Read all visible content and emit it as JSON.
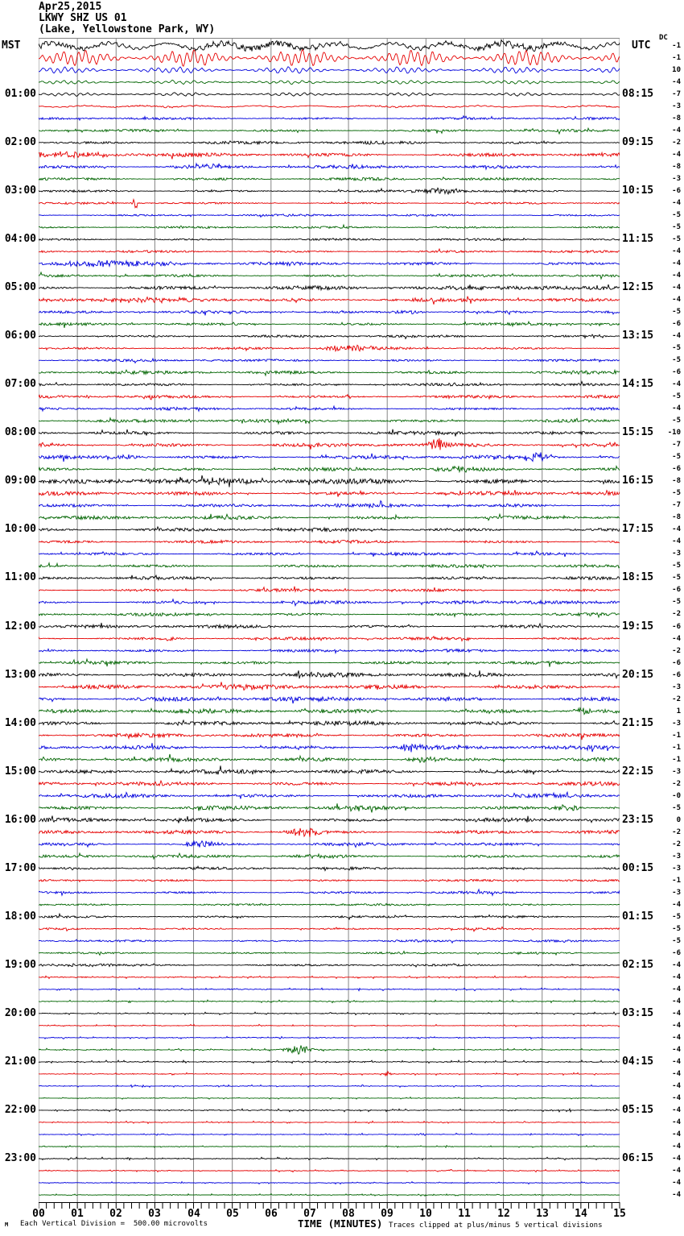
{
  "header": {
    "date": "Apr25,2015",
    "station": "LKWY SHZ US 01",
    "location": "(Lake, Yellowstone Park, WY)"
  },
  "left_axis": {
    "timezone": "MST",
    "labels": [
      "01:00",
      "02:00",
      "03:00",
      "04:00",
      "05:00",
      "06:00",
      "07:00",
      "08:00",
      "09:00",
      "10:00",
      "11:00",
      "12:00",
      "13:00",
      "14:00",
      "15:00",
      "16:00",
      "17:00",
      "18:00",
      "19:00",
      "20:00",
      "21:00",
      "22:00",
      "23:00"
    ]
  },
  "right_axis": {
    "timezone": "UTC",
    "dc_header": "DC",
    "labels": [
      "08:15",
      "09:15",
      "10:15",
      "11:15",
      "12:15",
      "13:15",
      "14:15",
      "15:15",
      "16:15",
      "17:15",
      "18:15",
      "19:15",
      "20:15",
      "21:15",
      "22:15",
      "23:15",
      "00:15",
      "01:15",
      "02:15",
      "03:15",
      "04:15",
      "05:15",
      "06:15"
    ]
  },
  "x_axis": {
    "title": "TIME (MINUTES)",
    "tick_labels": [
      "00",
      "01",
      "02",
      "03",
      "04",
      "05",
      "06",
      "07",
      "08",
      "09",
      "10",
      "11",
      "12",
      "13",
      "14",
      "15"
    ]
  },
  "footer": {
    "scale_note": "Each Vertical Division =  500.00 microvolts",
    "clip_note": "Traces clipped at plus/minus 5 vertical divisions",
    "corner_mark": "M"
  },
  "colors": {
    "black": "#000000",
    "red": "#e60000",
    "blue": "#0000dd",
    "green": "#006400",
    "grid": "#858585",
    "text": "#000000"
  },
  "chart_data": {
    "type": "line",
    "subtype": "helicorder-seismogram",
    "station": "LKWY SHZ US 01",
    "location_name": "Lake, Yellowstone Park, WY",
    "date": "Apr 25, 2015",
    "minutes_per_line": 15,
    "x_range_minutes": [
      0,
      15
    ],
    "rows_per_hour": 4,
    "row_count": 96,
    "color_cycle": [
      "black",
      "red",
      "blue",
      "green"
    ],
    "scale_microvolts_per_division": 500.0,
    "clip_divisions": 5,
    "rows": [
      {
        "mst": "00:00",
        "color": "black",
        "dc": "-1",
        "amp": 6.5,
        "style": "mixed"
      },
      {
        "mst": "00:15",
        "color": "red",
        "dc": "-1",
        "amp": 9,
        "style": "smooth"
      },
      {
        "mst": "00:30",
        "color": "blue",
        "dc": "10",
        "amp": 3.5,
        "style": "smooth"
      },
      {
        "mst": "00:45",
        "color": "green",
        "dc": "-4",
        "amp": 2,
        "style": "smooth"
      },
      {
        "mst": "01:00",
        "color": "black",
        "dc": "-7",
        "amp": 1.8,
        "style": "smooth"
      },
      {
        "mst": "01:15",
        "color": "red",
        "dc": "-3",
        "amp": 1.6,
        "style": "mixed"
      },
      {
        "mst": "01:30",
        "color": "blue",
        "dc": "-8",
        "amp": 1.3,
        "style": "jagged"
      },
      {
        "mst": "01:45",
        "color": "green",
        "dc": "-4",
        "amp": 1.3,
        "style": "jagged"
      },
      {
        "mst": "02:00",
        "color": "black",
        "dc": "-2",
        "amp": 1.6,
        "style": "jagged"
      },
      {
        "mst": "02:15",
        "color": "red",
        "dc": "-4",
        "amp": 2,
        "style": "jagged",
        "bursts": [
          [
            1,
            1.5,
            0.8
          ]
        ]
      },
      {
        "mst": "02:30",
        "color": "blue",
        "dc": "-8",
        "amp": 1.8,
        "style": "jagged",
        "bursts": [
          [
            4.3,
            1.5,
            0.5
          ]
        ]
      },
      {
        "mst": "02:45",
        "color": "green",
        "dc": "-3",
        "amp": 1.5,
        "style": "jagged"
      },
      {
        "mst": "03:00",
        "color": "black",
        "dc": "-6",
        "amp": 1.2,
        "style": "jagged",
        "bursts": [
          [
            10.4,
            1.8,
            0.4
          ]
        ]
      },
      {
        "mst": "03:15",
        "color": "red",
        "dc": "-4",
        "amp": 1,
        "style": "jagged",
        "bursts": [
          [
            2.5,
            3.5,
            0.05
          ]
        ]
      },
      {
        "mst": "03:30",
        "color": "blue",
        "dc": "-5",
        "amp": 1.1,
        "style": "jagged"
      },
      {
        "mst": "03:45",
        "color": "green",
        "dc": "-5",
        "amp": 1.1,
        "style": "jagged"
      },
      {
        "mst": "04:00",
        "color": "black",
        "dc": "-5",
        "amp": 1.1,
        "style": "jagged"
      },
      {
        "mst": "04:15",
        "color": "red",
        "dc": "-4",
        "amp": 1.2,
        "style": "jagged"
      },
      {
        "mst": "04:30",
        "color": "blue",
        "dc": "-4",
        "amp": 1.7,
        "style": "jagged",
        "bursts": [
          [
            1.8,
            1.8,
            1.2
          ]
        ]
      },
      {
        "mst": "04:45",
        "color": "green",
        "dc": "-4",
        "amp": 1.3,
        "style": "jagged"
      },
      {
        "mst": "05:00",
        "color": "black",
        "dc": "-4",
        "amp": 2,
        "style": "jagged",
        "bursts": [
          [
            12.5,
            1,
            1.5
          ]
        ]
      },
      {
        "mst": "05:15",
        "color": "red",
        "dc": "-4",
        "amp": 1.8,
        "style": "jagged",
        "bursts": [
          [
            3,
            1,
            2
          ]
        ]
      },
      {
        "mst": "05:30",
        "color": "blue",
        "dc": "-5",
        "amp": 1.4,
        "style": "jagged",
        "bursts": [
          [
            9.5,
            1.2,
            0.3
          ]
        ]
      },
      {
        "mst": "05:45",
        "color": "green",
        "dc": "-6",
        "amp": 1.4,
        "style": "jagged"
      },
      {
        "mst": "06:00",
        "color": "black",
        "dc": "-4",
        "amp": 1.3,
        "style": "jagged"
      },
      {
        "mst": "06:15",
        "color": "red",
        "dc": "-5",
        "amp": 1.4,
        "style": "jagged",
        "bursts": [
          [
            8,
            1.5,
            0.5
          ]
        ]
      },
      {
        "mst": "06:30",
        "color": "blue",
        "dc": "-5",
        "amp": 1.3,
        "style": "jagged"
      },
      {
        "mst": "06:45",
        "color": "green",
        "dc": "-6",
        "amp": 1.7,
        "style": "jagged"
      },
      {
        "mst": "07:00",
        "color": "black",
        "dc": "-4",
        "amp": 1.4,
        "style": "jagged"
      },
      {
        "mst": "07:15",
        "color": "red",
        "dc": "-5",
        "amp": 1.5,
        "style": "jagged"
      },
      {
        "mst": "07:30",
        "color": "blue",
        "dc": "-4",
        "amp": 1.4,
        "style": "jagged"
      },
      {
        "mst": "07:45",
        "color": "green",
        "dc": "-5",
        "amp": 1.7,
        "style": "jagged"
      },
      {
        "mst": "08:00",
        "color": "black",
        "dc": "-10",
        "amp": 1.8,
        "style": "jagged"
      },
      {
        "mst": "08:15",
        "color": "red",
        "dc": "-7",
        "amp": 2,
        "style": "jagged",
        "bursts": [
          [
            10.3,
            3.5,
            0.15
          ]
        ]
      },
      {
        "mst": "08:30",
        "color": "blue",
        "dc": "-5",
        "amp": 1.9,
        "style": "jagged",
        "bursts": [
          [
            12.9,
            2.5,
            0.25
          ],
          [
            2.2,
            1.5,
            0.3
          ]
        ]
      },
      {
        "mst": "08:45",
        "color": "green",
        "dc": "-6",
        "amp": 1.8,
        "style": "jagged",
        "bursts": [
          [
            10.9,
            1.2,
            0.4
          ]
        ]
      },
      {
        "mst": "09:00",
        "color": "black",
        "dc": "-8",
        "amp": 2.8,
        "style": "jagged",
        "bursts": [
          [
            3.5,
            1.2,
            1.5
          ]
        ]
      },
      {
        "mst": "09:15",
        "color": "red",
        "dc": "-5",
        "amp": 2,
        "style": "jagged"
      },
      {
        "mst": "09:30",
        "color": "blue",
        "dc": "-7",
        "amp": 1.9,
        "style": "jagged"
      },
      {
        "mst": "09:45",
        "color": "green",
        "dc": "-8",
        "amp": 1.9,
        "style": "jagged"
      },
      {
        "mst": "10:00",
        "color": "black",
        "dc": "-4",
        "amp": 1.8,
        "style": "jagged"
      },
      {
        "mst": "10:15",
        "color": "red",
        "dc": "-4",
        "amp": 1.6,
        "style": "jagged"
      },
      {
        "mst": "10:30",
        "color": "blue",
        "dc": "-3",
        "amp": 1.5,
        "style": "jagged"
      },
      {
        "mst": "10:45",
        "color": "green",
        "dc": "-5",
        "amp": 1.5,
        "style": "jagged"
      },
      {
        "mst": "11:00",
        "color": "black",
        "dc": "-5",
        "amp": 1.6,
        "style": "jagged"
      },
      {
        "mst": "11:15",
        "color": "red",
        "dc": "-6",
        "amp": 1.5,
        "style": "jagged"
      },
      {
        "mst": "11:30",
        "color": "blue",
        "dc": "-5",
        "amp": 1.6,
        "style": "jagged",
        "bursts": [
          [
            13,
            1,
            1
          ]
        ]
      },
      {
        "mst": "11:45",
        "color": "green",
        "dc": "-2",
        "amp": 1.5,
        "style": "jagged"
      },
      {
        "mst": "12:00",
        "color": "black",
        "dc": "-6",
        "amp": 1.7,
        "style": "jagged"
      },
      {
        "mst": "12:15",
        "color": "red",
        "dc": "-4",
        "amp": 1.5,
        "style": "jagged",
        "bursts": [
          [
            3.4,
            1.5,
            0.1
          ]
        ]
      },
      {
        "mst": "12:30",
        "color": "blue",
        "dc": "-2",
        "amp": 1.5,
        "style": "jagged"
      },
      {
        "mst": "12:45",
        "color": "green",
        "dc": "-6",
        "amp": 1.6,
        "style": "jagged"
      },
      {
        "mst": "13:00",
        "color": "black",
        "dc": "-6",
        "amp": 2.2,
        "style": "jagged"
      },
      {
        "mst": "13:15",
        "color": "red",
        "dc": "-3",
        "amp": 2.6,
        "style": "jagged"
      },
      {
        "mst": "13:30",
        "color": "blue",
        "dc": "-2",
        "amp": 2.3,
        "style": "jagged"
      },
      {
        "mst": "13:45",
        "color": "green",
        "dc": "1",
        "amp": 2.3,
        "style": "jagged",
        "bursts": [
          [
            14.1,
            2,
            0.2
          ]
        ]
      },
      {
        "mst": "14:00",
        "color": "black",
        "dc": "-3",
        "amp": 2.2,
        "style": "jagged"
      },
      {
        "mst": "14:15",
        "color": "red",
        "dc": "-1",
        "amp": 2,
        "style": "jagged"
      },
      {
        "mst": "14:30",
        "color": "blue",
        "dc": "-1",
        "amp": 2,
        "style": "jagged",
        "bursts": [
          [
            9.6,
            1.5,
            0.4
          ]
        ]
      },
      {
        "mst": "14:45",
        "color": "green",
        "dc": "-1",
        "amp": 2,
        "style": "jagged",
        "bursts": [
          [
            9.9,
            1.5,
            0.3
          ]
        ]
      },
      {
        "mst": "15:00",
        "color": "black",
        "dc": "-3",
        "amp": 2.2,
        "style": "jagged"
      },
      {
        "mst": "15:15",
        "color": "red",
        "dc": "-2",
        "amp": 2,
        "style": "jagged"
      },
      {
        "mst": "15:30",
        "color": "blue",
        "dc": "-0",
        "amp": 2,
        "style": "jagged"
      },
      {
        "mst": "15:45",
        "color": "green",
        "dc": "-5",
        "amp": 2.1,
        "style": "jagged",
        "bursts": [
          [
            13.6,
            2.2,
            0.25
          ]
        ]
      },
      {
        "mst": "16:00",
        "color": "black",
        "dc": "0",
        "amp": 2,
        "style": "jagged"
      },
      {
        "mst": "16:15",
        "color": "red",
        "dc": "-2",
        "amp": 1.8,
        "style": "jagged",
        "bursts": [
          [
            6.9,
            2.5,
            0.3
          ]
        ]
      },
      {
        "mst": "16:30",
        "color": "blue",
        "dc": "-2",
        "amp": 1.6,
        "style": "jagged",
        "bursts": [
          [
            4.2,
            2,
            0.3
          ]
        ]
      },
      {
        "mst": "16:45",
        "color": "green",
        "dc": "-3",
        "amp": 1.5,
        "style": "jagged",
        "bursts": [
          [
            7.1,
            1,
            0.5
          ]
        ]
      },
      {
        "mst": "17:00",
        "color": "black",
        "dc": "-3",
        "amp": 1.3,
        "style": "jagged"
      },
      {
        "mst": "17:15",
        "color": "red",
        "dc": "-1",
        "amp": 1.1,
        "style": "jagged"
      },
      {
        "mst": "17:30",
        "color": "blue",
        "dc": "-3",
        "amp": 1.2,
        "style": "jagged"
      },
      {
        "mst": "17:45",
        "color": "green",
        "dc": "-4",
        "amp": 1.1,
        "style": "jagged"
      },
      {
        "mst": "18:00",
        "color": "black",
        "dc": "-5",
        "amp": 1.2,
        "style": "jagged"
      },
      {
        "mst": "18:15",
        "color": "red",
        "dc": "-5",
        "amp": 1,
        "style": "jagged"
      },
      {
        "mst": "18:30",
        "color": "blue",
        "dc": "-5",
        "amp": 1.1,
        "style": "jagged"
      },
      {
        "mst": "18:45",
        "color": "green",
        "dc": "-6",
        "amp": 1,
        "style": "jagged"
      },
      {
        "mst": "19:00",
        "color": "black",
        "dc": "-4",
        "amp": 1,
        "style": "jagged",
        "bursts": [
          [
            1.2,
            0.8,
            1
          ]
        ]
      },
      {
        "mst": "19:15",
        "color": "red",
        "dc": "-4",
        "amp": 0.8,
        "style": "sparse"
      },
      {
        "mst": "19:30",
        "color": "blue",
        "dc": "-4",
        "amp": 0.8,
        "style": "sparse"
      },
      {
        "mst": "19:45",
        "color": "green",
        "dc": "-4",
        "amp": 0.8,
        "style": "sparse"
      },
      {
        "mst": "20:00",
        "color": "black",
        "dc": "-4",
        "amp": 0.8,
        "style": "sparse"
      },
      {
        "mst": "20:15",
        "color": "red",
        "dc": "-4",
        "amp": 0.7,
        "style": "sparse"
      },
      {
        "mst": "20:30",
        "color": "blue",
        "dc": "-4",
        "amp": 0.7,
        "style": "sparse"
      },
      {
        "mst": "20:45",
        "color": "green",
        "dc": "-4",
        "amp": 0.8,
        "style": "sparse",
        "bursts": [
          [
            6.7,
            2.5,
            0.25
          ]
        ]
      },
      {
        "mst": "21:00",
        "color": "black",
        "dc": "-4",
        "amp": 0.9,
        "style": "sparse"
      },
      {
        "mst": "21:15",
        "color": "red",
        "dc": "-4",
        "amp": 0.7,
        "style": "sparse",
        "bursts": [
          [
            9,
            2,
            0.07
          ]
        ]
      },
      {
        "mst": "21:30",
        "color": "blue",
        "dc": "-4",
        "amp": 0.7,
        "style": "sparse"
      },
      {
        "mst": "21:45",
        "color": "green",
        "dc": "-4",
        "amp": 0.6,
        "style": "sparse"
      },
      {
        "mst": "22:00",
        "color": "black",
        "dc": "-4",
        "amp": 0.9,
        "style": "sparse"
      },
      {
        "mst": "22:15",
        "color": "red",
        "dc": "-4",
        "amp": 0.7,
        "style": "sparse"
      },
      {
        "mst": "22:30",
        "color": "blue",
        "dc": "-4",
        "amp": 0.7,
        "style": "sparse",
        "bursts": [
          [
            9.9,
            1.2,
            0.06
          ]
        ]
      },
      {
        "mst": "22:45",
        "color": "green",
        "dc": "-4",
        "amp": 0.6,
        "style": "sparse"
      },
      {
        "mst": "23:00",
        "color": "black",
        "dc": "-4",
        "amp": 0.8,
        "style": "sparse"
      },
      {
        "mst": "23:15",
        "color": "red",
        "dc": "-4",
        "amp": 0.7,
        "style": "sparse"
      },
      {
        "mst": "23:30",
        "color": "blue",
        "dc": "-4",
        "amp": 0.7,
        "style": "sparse"
      },
      {
        "mst": "23:45",
        "color": "green",
        "dc": "-4",
        "amp": 0.7,
        "style": "sparse"
      }
    ]
  }
}
